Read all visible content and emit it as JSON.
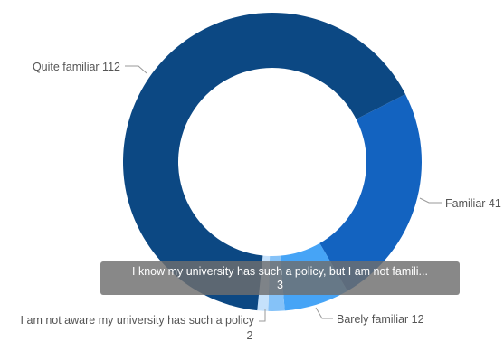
{
  "chart_data": {
    "type": "pie",
    "donut": true,
    "slices": [
      {
        "label": "Familiar",
        "value": 41,
        "color": "#1363c0",
        "display": "Familiar 41"
      },
      {
        "label": "Barely familiar",
        "value": 12,
        "color": "#46a4f6",
        "display": "Barely familiar 12"
      },
      {
        "label": "I know my university has such a policy, but I am not famili...",
        "value": 3,
        "color": "#85c2f8",
        "display": ""
      },
      {
        "label": "I am not aware my university has such a policy",
        "value": 2,
        "color": "#c5e1fb",
        "display": "I am not aware my university has such a policy",
        "display_value": "2"
      },
      {
        "label": "Quite familiar",
        "value": 112,
        "color": "#0c4883",
        "display": "Quite familiar 112"
      }
    ],
    "tooltip": {
      "label": "I know my university has such a policy, but I am not famili...",
      "value": "3"
    }
  }
}
